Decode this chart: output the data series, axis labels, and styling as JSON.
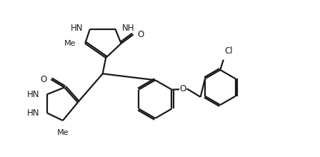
{
  "background_color": "#ffffff",
  "line_color": "#1a1a1a",
  "line_width": 1.6,
  "font_size": 8.5,
  "figsize": [
    4.48,
    2.2
  ],
  "dpi": 100,
  "xlim": [
    0,
    10
  ],
  "ylim": [
    0,
    4.9
  ]
}
